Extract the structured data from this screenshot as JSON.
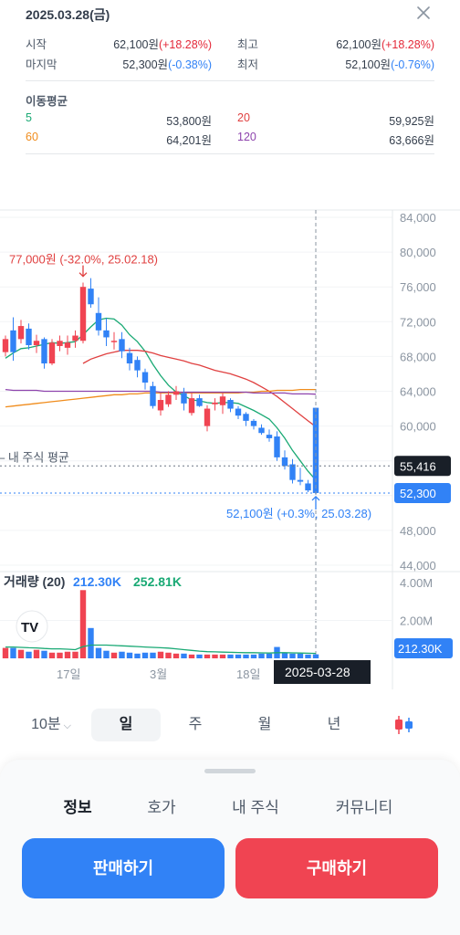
{
  "header": {
    "date": "2025.03.28(금)",
    "close_icon": "close-icon"
  },
  "price_info": [
    {
      "label": "시작",
      "value": "62,100원",
      "change": "(+18.28%)",
      "direction": "up"
    },
    {
      "label": "최고",
      "value": "62,100원",
      "change": "(+18.28%)",
      "direction": "up"
    },
    {
      "label": "마지막",
      "value": "52,300원",
      "change": "(-0.38%)",
      "direction": "down"
    },
    {
      "label": "최저",
      "value": "52,100원",
      "change": "(-0.76%)",
      "direction": "down"
    }
  ],
  "moving_average": {
    "title": "이동평균",
    "items": [
      {
        "period": "5",
        "value": "53,800원",
        "color": "#19a974"
      },
      {
        "period": "20",
        "value": "59,925원",
        "color": "#e04040"
      },
      {
        "period": "60",
        "value": "64,201원",
        "color": "#f08c1c"
      },
      {
        "period": "120",
        "value": "63,666원",
        "color": "#8e44ad"
      }
    ]
  },
  "chart_data": {
    "type": "candlestick",
    "y_axis_ticks": [
      "84,000",
      "80,000",
      "76,000",
      "72,000",
      "68,000",
      "64,000",
      "60,000",
      "56,000",
      "52,000",
      "48,000",
      "44,000"
    ],
    "y_range": [
      44000,
      84000
    ],
    "candles": [
      {
        "o": 68500,
        "h": 70400,
        "l": 68000,
        "c": 70000
      },
      {
        "o": 71000,
        "h": 72500,
        "l": 67500,
        "c": 68500
      },
      {
        "o": 70000,
        "h": 72200,
        "l": 69500,
        "c": 71500
      },
      {
        "o": 71200,
        "h": 71800,
        "l": 68800,
        "c": 69300
      },
      {
        "o": 69300,
        "h": 70500,
        "l": 68400,
        "c": 69800
      },
      {
        "o": 70000,
        "h": 70200,
        "l": 66600,
        "c": 67200
      },
      {
        "o": 67200,
        "h": 70000,
        "l": 67000,
        "c": 69600
      },
      {
        "o": 69200,
        "h": 70400,
        "l": 68600,
        "c": 69800
      },
      {
        "o": 69000,
        "h": 70400,
        "l": 68200,
        "c": 69600
      },
      {
        "o": 69800,
        "h": 71000,
        "l": 69000,
        "c": 70400
      },
      {
        "o": 69800,
        "h": 76500,
        "l": 69500,
        "c": 76000
      },
      {
        "o": 75800,
        "h": 77000,
        "l": 73600,
        "c": 74000
      },
      {
        "o": 73000,
        "h": 74800,
        "l": 70400,
        "c": 71000
      },
      {
        "o": 71000,
        "h": 72400,
        "l": 69200,
        "c": 70200
      },
      {
        "o": 69800,
        "h": 70800,
        "l": 68800,
        "c": 69800
      },
      {
        "o": 70000,
        "h": 70800,
        "l": 67800,
        "c": 68600
      },
      {
        "o": 68400,
        "h": 69000,
        "l": 66400,
        "c": 67200
      },
      {
        "o": 67600,
        "h": 68000,
        "l": 65600,
        "c": 66400
      },
      {
        "o": 66200,
        "h": 66600,
        "l": 64200,
        "c": 65000
      },
      {
        "o": 64600,
        "h": 65100,
        "l": 62000,
        "c": 62300
      },
      {
        "o": 61800,
        "h": 63800,
        "l": 61200,
        "c": 63000
      },
      {
        "o": 62500,
        "h": 64000,
        "l": 62200,
        "c": 63600
      },
      {
        "o": 63600,
        "h": 64600,
        "l": 63000,
        "c": 64000
      },
      {
        "o": 63800,
        "h": 64400,
        "l": 61800,
        "c": 62600
      },
      {
        "o": 61500,
        "h": 63800,
        "l": 61200,
        "c": 63200
      },
      {
        "o": 63200,
        "h": 63600,
        "l": 62200,
        "c": 62300
      },
      {
        "o": 60000,
        "h": 62400,
        "l": 59400,
        "c": 62000
      },
      {
        "o": 62500,
        "h": 63200,
        "l": 61800,
        "c": 62700
      },
      {
        "o": 62400,
        "h": 63800,
        "l": 61400,
        "c": 63400
      },
      {
        "o": 63000,
        "h": 63200,
        "l": 61600,
        "c": 62000
      },
      {
        "o": 62000,
        "h": 62300,
        "l": 60800,
        "c": 61200
      },
      {
        "o": 61400,
        "h": 61600,
        "l": 60000,
        "c": 60600
      },
      {
        "o": 60600,
        "h": 60800,
        "l": 59600,
        "c": 60000
      },
      {
        "o": 59800,
        "h": 60200,
        "l": 59000,
        "c": 59200
      },
      {
        "o": 59000,
        "h": 59600,
        "l": 58200,
        "c": 58600
      },
      {
        "o": 58800,
        "h": 59400,
        "l": 56000,
        "c": 56400
      },
      {
        "o": 56400,
        "h": 57200,
        "l": 55000,
        "c": 55400
      },
      {
        "o": 55600,
        "h": 56200,
        "l": 53400,
        "c": 53800
      },
      {
        "o": 53800,
        "h": 55200,
        "l": 53200,
        "c": 53600
      },
      {
        "o": 53400,
        "h": 53800,
        "l": 52400,
        "c": 52600
      },
      {
        "o": 62100,
        "h": 62100,
        "l": 52100,
        "c": 52300
      }
    ],
    "ma_series": [
      {
        "name": "5",
        "color": "#19a974",
        "values": [
          67800,
          68400,
          68900,
          69000,
          69200,
          69400,
          69600,
          69500,
          69600,
          69700,
          70500,
          71400,
          72200,
          72400,
          72300,
          71600,
          70500,
          69700,
          68600,
          67100,
          65800,
          64700,
          63900,
          63500,
          63000,
          62900,
          62700,
          62600,
          62700,
          62700,
          62600,
          62200,
          61800,
          61300,
          60800,
          59800,
          58600,
          57200,
          56000,
          54800,
          53800
        ]
      },
      {
        "name": "20",
        "color": "#e04040",
        "values": [
          null,
          null,
          null,
          null,
          null,
          null,
          null,
          null,
          null,
          null,
          67200,
          67700,
          68000,
          68300,
          68500,
          68700,
          68700,
          68700,
          68600,
          68400,
          68100,
          67900,
          67700,
          67500,
          67200,
          67000,
          66700,
          66400,
          66200,
          66000,
          65700,
          65400,
          65000,
          64500,
          64000,
          63400,
          62700,
          62000,
          61300,
          60600,
          59925
        ]
      },
      {
        "name": "60",
        "color": "#f08c1c",
        "values": [
          62200,
          62300,
          62400,
          62500,
          62600,
          62700,
          62800,
          62900,
          63000,
          63100,
          63200,
          63300,
          63400,
          63500,
          63600,
          63600,
          63700,
          63700,
          63800,
          63800,
          63800,
          63800,
          63800,
          63800,
          63800,
          63800,
          63800,
          63800,
          63800,
          63800,
          63800,
          63900,
          63900,
          64000,
          64000,
          64100,
          64100,
          64100,
          64200,
          64200,
          64201
        ]
      },
      {
        "name": "120",
        "color": "#8e44ad",
        "values": [
          64200,
          64100,
          64100,
          64100,
          64100,
          64000,
          64000,
          64000,
          64000,
          64000,
          64000,
          64000,
          64000,
          64000,
          64000,
          64000,
          64000,
          64000,
          64000,
          64000,
          63900,
          63900,
          63900,
          63900,
          63900,
          63900,
          63900,
          63900,
          63900,
          63900,
          63900,
          63900,
          63800,
          63800,
          63800,
          63800,
          63800,
          63700,
          63700,
          63700,
          63666
        ]
      }
    ],
    "high_annotation": "77,000원 (-32.0%, 25.02.18)",
    "low_annotation": "52,100원 (+0.3%, 25.03.28)",
    "avg_label": "내 주식 평균",
    "avg_value": "55,416",
    "last_value": "52,300",
    "avg_price": 55416,
    "last_price": 52300,
    "volume": {
      "title": "거래량 (20)",
      "current": "212.30K",
      "ma": "252.81K",
      "y_ticks": [
        "4.00M",
        "2.00M"
      ],
      "last_label": "212.30K",
      "values": [
        0.55,
        0.55,
        0.45,
        0.35,
        0.45,
        0.4,
        0.3,
        0.3,
        0.35,
        0.35,
        3.6,
        1.6,
        0.55,
        0.4,
        0.3,
        0.35,
        0.3,
        0.25,
        0.3,
        0.3,
        0.35,
        0.3,
        0.25,
        0.25,
        0.2,
        0.2,
        0.2,
        0.2,
        0.2,
        0.2,
        0.2,
        0.2,
        0.2,
        0.25,
        0.25,
        0.6,
        0.3,
        0.25,
        0.25,
        0.2,
        0.21
      ],
      "ma_values": [
        0.6,
        0.6,
        0.58,
        0.56,
        0.55,
        0.52,
        0.5,
        0.5,
        0.48,
        0.46,
        0.62,
        0.7,
        0.7,
        0.7,
        0.68,
        0.66,
        0.64,
        0.62,
        0.6,
        0.58,
        0.56,
        0.54,
        0.5,
        0.46,
        0.42,
        0.38,
        0.35,
        0.34,
        0.33,
        0.32,
        0.31,
        0.3,
        0.3,
        0.29,
        0.28,
        0.3,
        0.3,
        0.29,
        0.28,
        0.27,
        0.26
      ]
    },
    "x_labels": [
      "17일",
      "3월",
      "18일"
    ],
    "cursor_date": "2025-03-28",
    "watermark": "TV"
  },
  "periods": {
    "items": [
      "10분",
      "일",
      "주",
      "월",
      "년"
    ],
    "active": "일"
  },
  "sheet": {
    "tabs": [
      "정보",
      "호가",
      "내 주식",
      "커뮤니티"
    ],
    "active_tab": "정보",
    "sell": "판매하기",
    "buy": "구매하기"
  },
  "colors": {
    "up": "#e42939",
    "down": "#3182f6",
    "candle_up": "#f04452",
    "candle_down": "#3182f6"
  }
}
